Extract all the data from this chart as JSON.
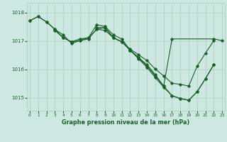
{
  "background_color": "#cce8e0",
  "grid_color": "#aaccbb",
  "line_color": "#1a5e2a",
  "title": "Graphe pression niveau de la mer (hPa)",
  "ylabel_ticks": [
    1015,
    1016,
    1017,
    1018
  ],
  "xlim": [
    -0.3,
    23.3
  ],
  "ylim": [
    1014.55,
    1018.35
  ],
  "series": [
    {
      "x": [
        0,
        1,
        2,
        3,
        4,
        5,
        6,
        7,
        8,
        9,
        10,
        11,
        12,
        13,
        14,
        15,
        16,
        17,
        18,
        19,
        20,
        21,
        22
      ],
      "y": [
        1017.72,
        1017.87,
        1017.68,
        1017.42,
        1017.12,
        1016.98,
        1017.02,
        1017.08,
        1017.42,
        1017.38,
        1017.12,
        1016.98,
        1016.72,
        1016.52,
        1016.32,
        1016.02,
        1015.78,
        1015.52,
        1015.48,
        1015.42,
        1016.12,
        1016.58,
        1017.02
      ]
    },
    {
      "x": [
        0,
        1,
        2,
        3,
        4,
        5,
        6,
        7,
        8,
        9,
        10,
        11,
        12,
        13,
        14,
        15,
        16,
        17,
        18,
        19,
        20,
        21,
        22
      ],
      "y": [
        1017.72,
        1017.87,
        1017.68,
        1017.42,
        1017.22,
        1016.92,
        1017.02,
        1017.12,
        1017.58,
        1017.52,
        1017.22,
        1017.08,
        1016.68,
        1016.42,
        1016.18,
        1015.82,
        1015.42,
        1015.08,
        1014.98,
        1014.92,
        1015.22,
        1015.68,
        1016.18
      ]
    },
    {
      "x": [
        3,
        4,
        5,
        6,
        7,
        8,
        9,
        10,
        11,
        12,
        13,
        14,
        15,
        16,
        17,
        22,
        23
      ],
      "y": [
        1017.38,
        1017.12,
        1016.98,
        1017.08,
        1017.12,
        1017.42,
        1017.48,
        1017.12,
        1016.98,
        1016.68,
        1016.42,
        1016.12,
        1015.78,
        1015.42,
        1017.08,
        1017.08,
        1017.02
      ]
    },
    {
      "x": [
        8,
        9,
        10,
        11,
        12,
        13,
        14,
        15,
        16,
        17,
        18,
        19,
        20,
        21,
        22
      ],
      "y": [
        1017.48,
        1017.48,
        1017.12,
        1016.98,
        1016.68,
        1016.38,
        1016.08,
        1015.72,
        1015.38,
        1015.08,
        1014.98,
        1014.92,
        1015.22,
        1015.68,
        1016.18
      ]
    }
  ]
}
